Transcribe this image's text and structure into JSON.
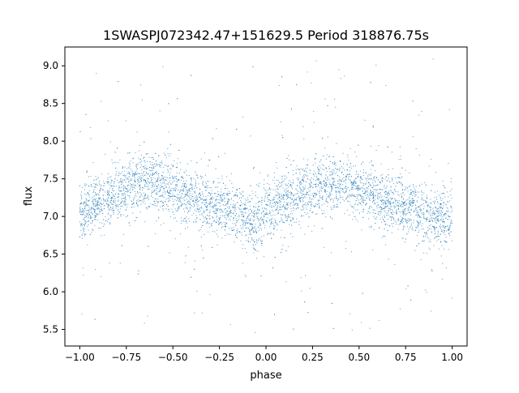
{
  "chart_data": {
    "type": "scatter",
    "title": "1SWASPJ072342.47+151629.5 Period 318876.75s",
    "xlabel": "phase",
    "ylabel": "flux",
    "xlim": [
      -1.08,
      1.08
    ],
    "ylim": [
      5.28,
      9.25
    ],
    "xticks": [
      -1.0,
      -0.75,
      -0.5,
      -0.25,
      0.0,
      0.25,
      0.5,
      0.75,
      1.0
    ],
    "xtick_labels": [
      "−1.00",
      "−0.75",
      "−0.50",
      "−0.25",
      "0.00",
      "0.25",
      "0.50",
      "0.75",
      "1.00"
    ],
    "yticks": [
      5.5,
      6.0,
      6.5,
      7.0,
      7.5,
      8.0,
      8.5,
      9.0
    ],
    "ytick_labels": [
      "5.5",
      "6.0",
      "6.5",
      "7.0",
      "7.5",
      "8.0",
      "8.5",
      "9.0"
    ],
    "grid": false,
    "legend": "none",
    "color": "#1f77b4",
    "series": [
      {
        "x_range": [
          -1.0,
          1.0
        ],
        "mean_curve_phase": [
          -1.0,
          -0.9,
          -0.8,
          -0.7,
          -0.6,
          -0.5,
          -0.4,
          -0.3,
          -0.2,
          -0.1,
          0.0,
          0.1,
          0.2,
          0.3,
          0.4,
          0.5,
          0.6,
          0.7,
          0.8,
          0.9,
          1.0
        ],
        "mean_curve_flux": [
          7.0,
          7.2,
          7.3,
          7.45,
          7.45,
          7.35,
          7.25,
          7.15,
          7.1,
          6.95,
          7.0,
          7.2,
          7.3,
          7.45,
          7.45,
          7.35,
          7.25,
          7.15,
          7.1,
          6.95,
          7.0
        ],
        "scatter_sigma": 0.18,
        "outlier_range": [
          5.45,
          9.1
        ]
      }
    ]
  }
}
